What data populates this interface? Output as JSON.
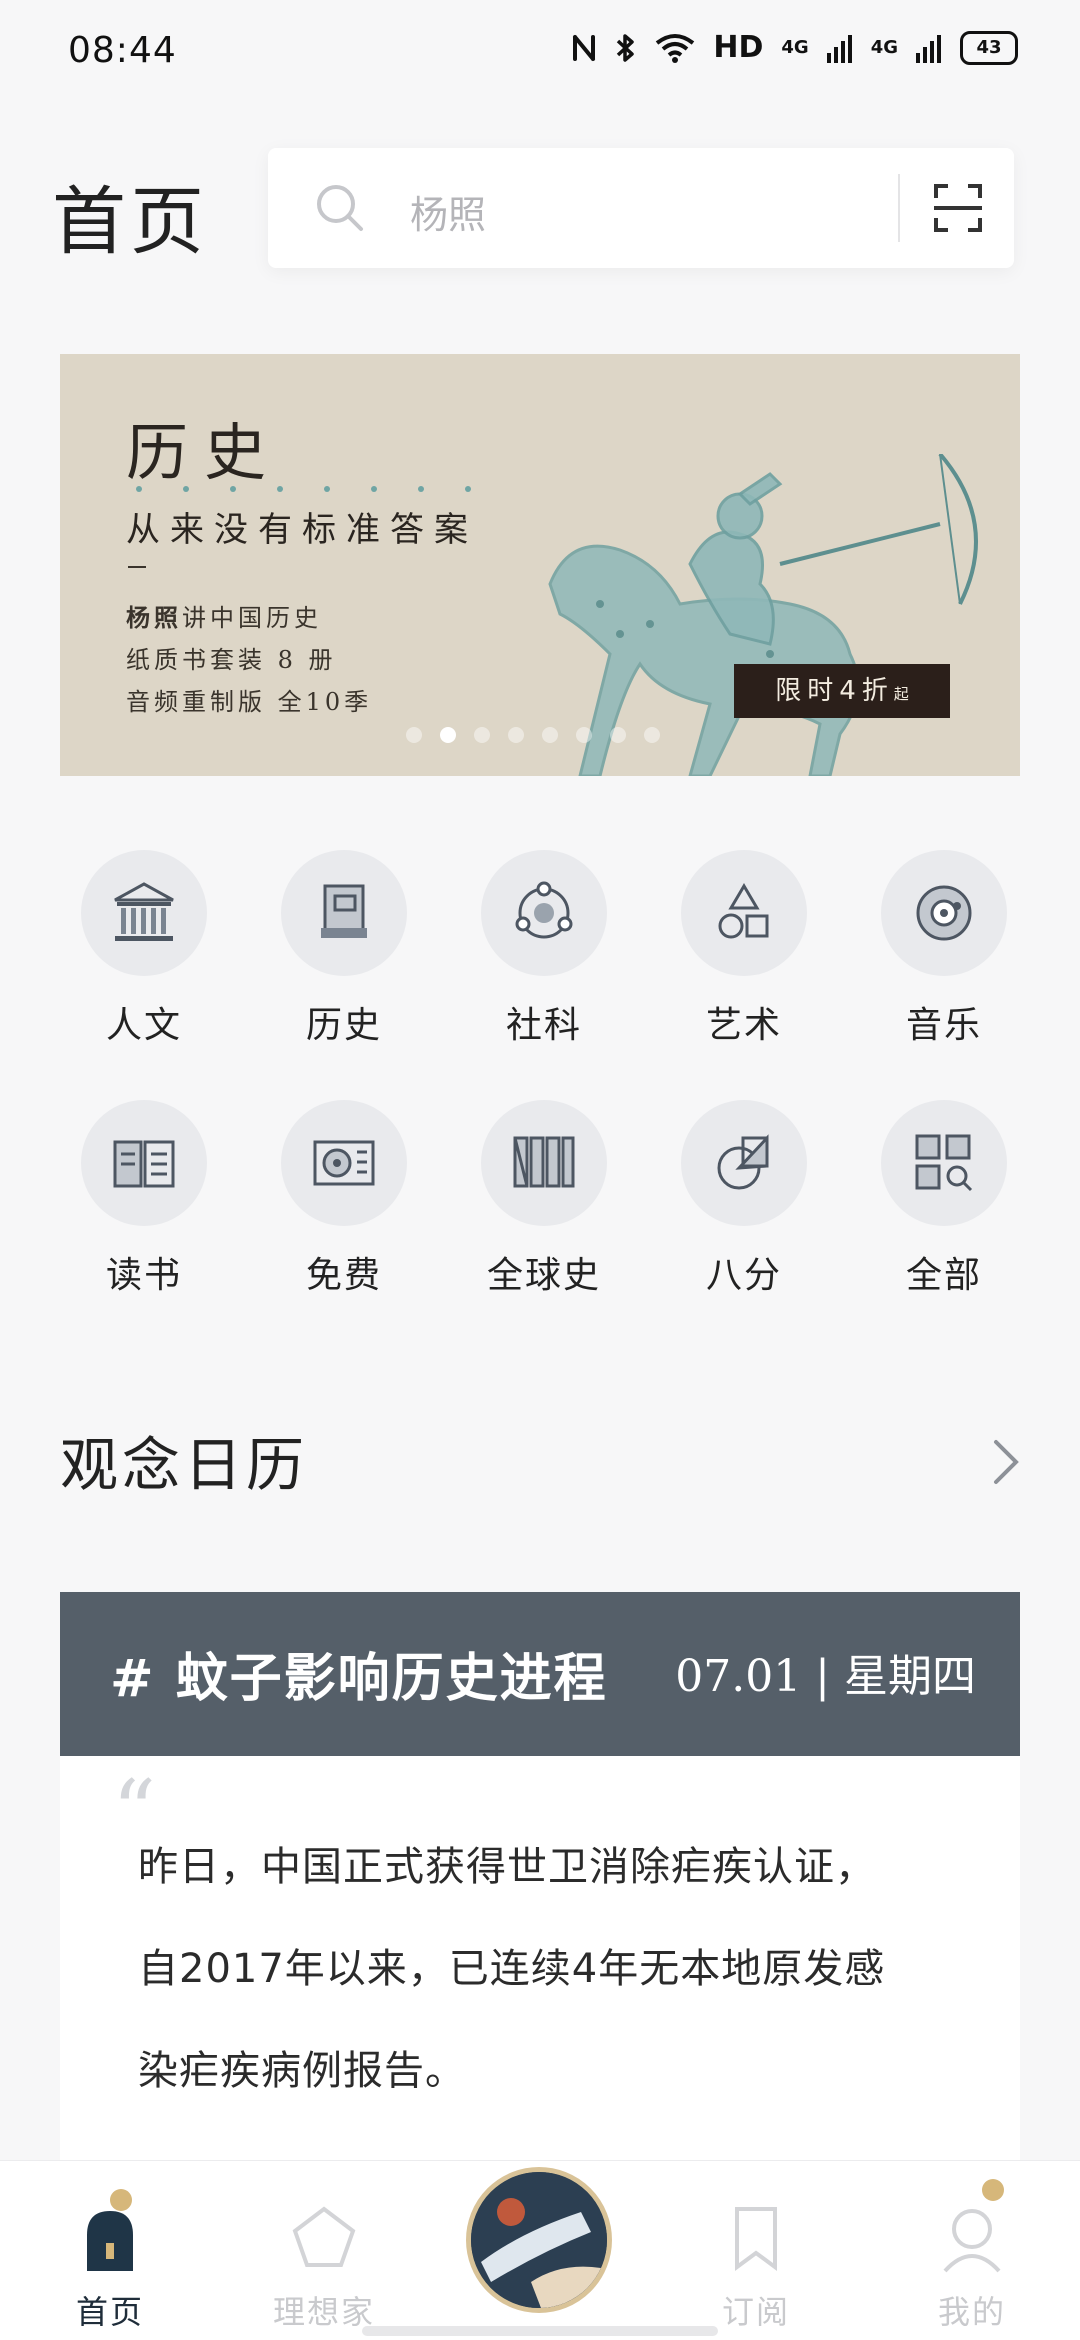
{
  "status_bar": {
    "time": "08:44",
    "network_label": "HD",
    "signal_1": "4G",
    "signal_2": "4G",
    "battery": "43"
  },
  "header": {
    "title": "首页",
    "search_placeholder": "杨照"
  },
  "banner": {
    "title": "历史",
    "subtitle": "从来没有标准答案",
    "author": "杨照",
    "line1_suffix": "讲中国历史",
    "line2": "纸质书套装 8 册",
    "line3": "音频重制版 全10季",
    "promo": "限时4折",
    "promo_suffix": "起",
    "page_count": 8,
    "active_page": 2,
    "accent_color": "#6fa5a4"
  },
  "categories": [
    {
      "label": "人文",
      "icon": "museum-icon"
    },
    {
      "label": "历史",
      "icon": "book-icon"
    },
    {
      "label": "社科",
      "icon": "orbit-icon"
    },
    {
      "label": "艺术",
      "icon": "shapes-icon"
    },
    {
      "label": "音乐",
      "icon": "disc-icon"
    },
    {
      "label": "读书",
      "icon": "open-book-icon"
    },
    {
      "label": "免费",
      "icon": "player-icon"
    },
    {
      "label": "全球史",
      "icon": "bookshelf-icon"
    },
    {
      "label": "八分",
      "icon": "pie-icon"
    },
    {
      "label": "全部",
      "icon": "grid-search-icon"
    }
  ],
  "calendar": {
    "section_title": "观念日历",
    "tag": "# 蚊子影响历史进程",
    "date": "07.01 | 星期四",
    "quote_mark": "“",
    "text_lines": [
      "昨日，中国正式获得世卫消除疟疾认证，",
      "自2017年以来，已连续4年无本地原发感",
      "染疟疾病例报告。"
    ],
    "header_color": "#555f69"
  },
  "bottom_nav": {
    "items": [
      {
        "label": "首页",
        "active": true
      },
      {
        "label": "理想家",
        "active": false
      },
      {
        "label": "订阅",
        "active": false
      },
      {
        "label": "我的",
        "active": false
      }
    ]
  }
}
